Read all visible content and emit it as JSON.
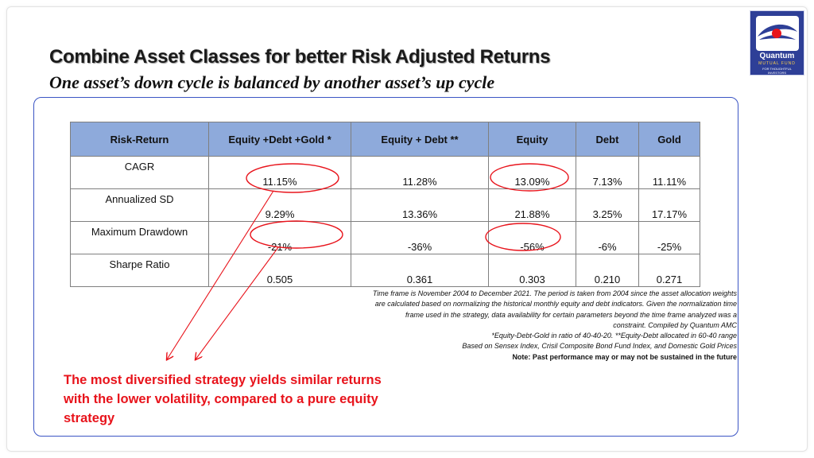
{
  "header": {
    "title": "Combine Asset Classes for better Risk Adjusted Returns",
    "subtitle": "One asset’s down cycle is balanced by another asset’s up cycle"
  },
  "logo": {
    "name": "Quantum",
    "sub": "MUTUAL FUND",
    "tagline_1": "FOR THOUGHTFUL",
    "tagline_2": "INVESTORS",
    "colors": {
      "background": "#2e3f97",
      "accent": "#e8131b",
      "sub": "#ffd24a"
    }
  },
  "table": {
    "headers": [
      "Risk-Return",
      "Equity +Debt  +Gold *",
      "Equity + Debt **",
      "Equity",
      "Debt",
      "Gold"
    ],
    "rows": [
      {
        "metric": "CAGR",
        "values": [
          "11.15%",
          "11.28%",
          "13.09%",
          "7.13%",
          "11.11%"
        ]
      },
      {
        "metric": "Annualized SD",
        "values": [
          "9.29%",
          "13.36%",
          "21.88%",
          "3.25%",
          "17.17%"
        ]
      },
      {
        "metric": "Maximum Drawdown",
        "values": [
          "-21%",
          "-36%",
          "-56%",
          "-6%",
          "-25%"
        ]
      },
      {
        "metric": "Sharpe Ratio",
        "values": [
          "0.505",
          "0.361",
          "0.303",
          "0.210",
          "0.271"
        ]
      }
    ],
    "header_color": "#8eaadb"
  },
  "notes": {
    "line_1": "Time frame is November 2004 to December 2021. The period is taken from 2004 since the asset allocation weights",
    "line_2": "are calculated based on normalizing the historical monthly equity and debt indicators. Given the normalization time",
    "line_3": "frame used in the strategy, data availability for certain parameters beyond the time frame analyzed was a",
    "line_4": "constraint.  Compiled by Quantum AMC",
    "line_5": "*Equity-Debt-Gold in ratio of 40-40-20. **Equity-Debt allocated in  60-40 range",
    "line_6": "Based on Sensex Index, Crisil Composite Bond Fund Index, and Domestic Gold Prices",
    "disclaimer": "Note: Past performance may or may not be sustained in the future"
  },
  "callout": {
    "text": "The most diversified strategy yields similar returns with the lower volatility, compared to a pure equity strategy",
    "color": "#e8131b"
  },
  "panel_border_color": "#3b55c4"
}
